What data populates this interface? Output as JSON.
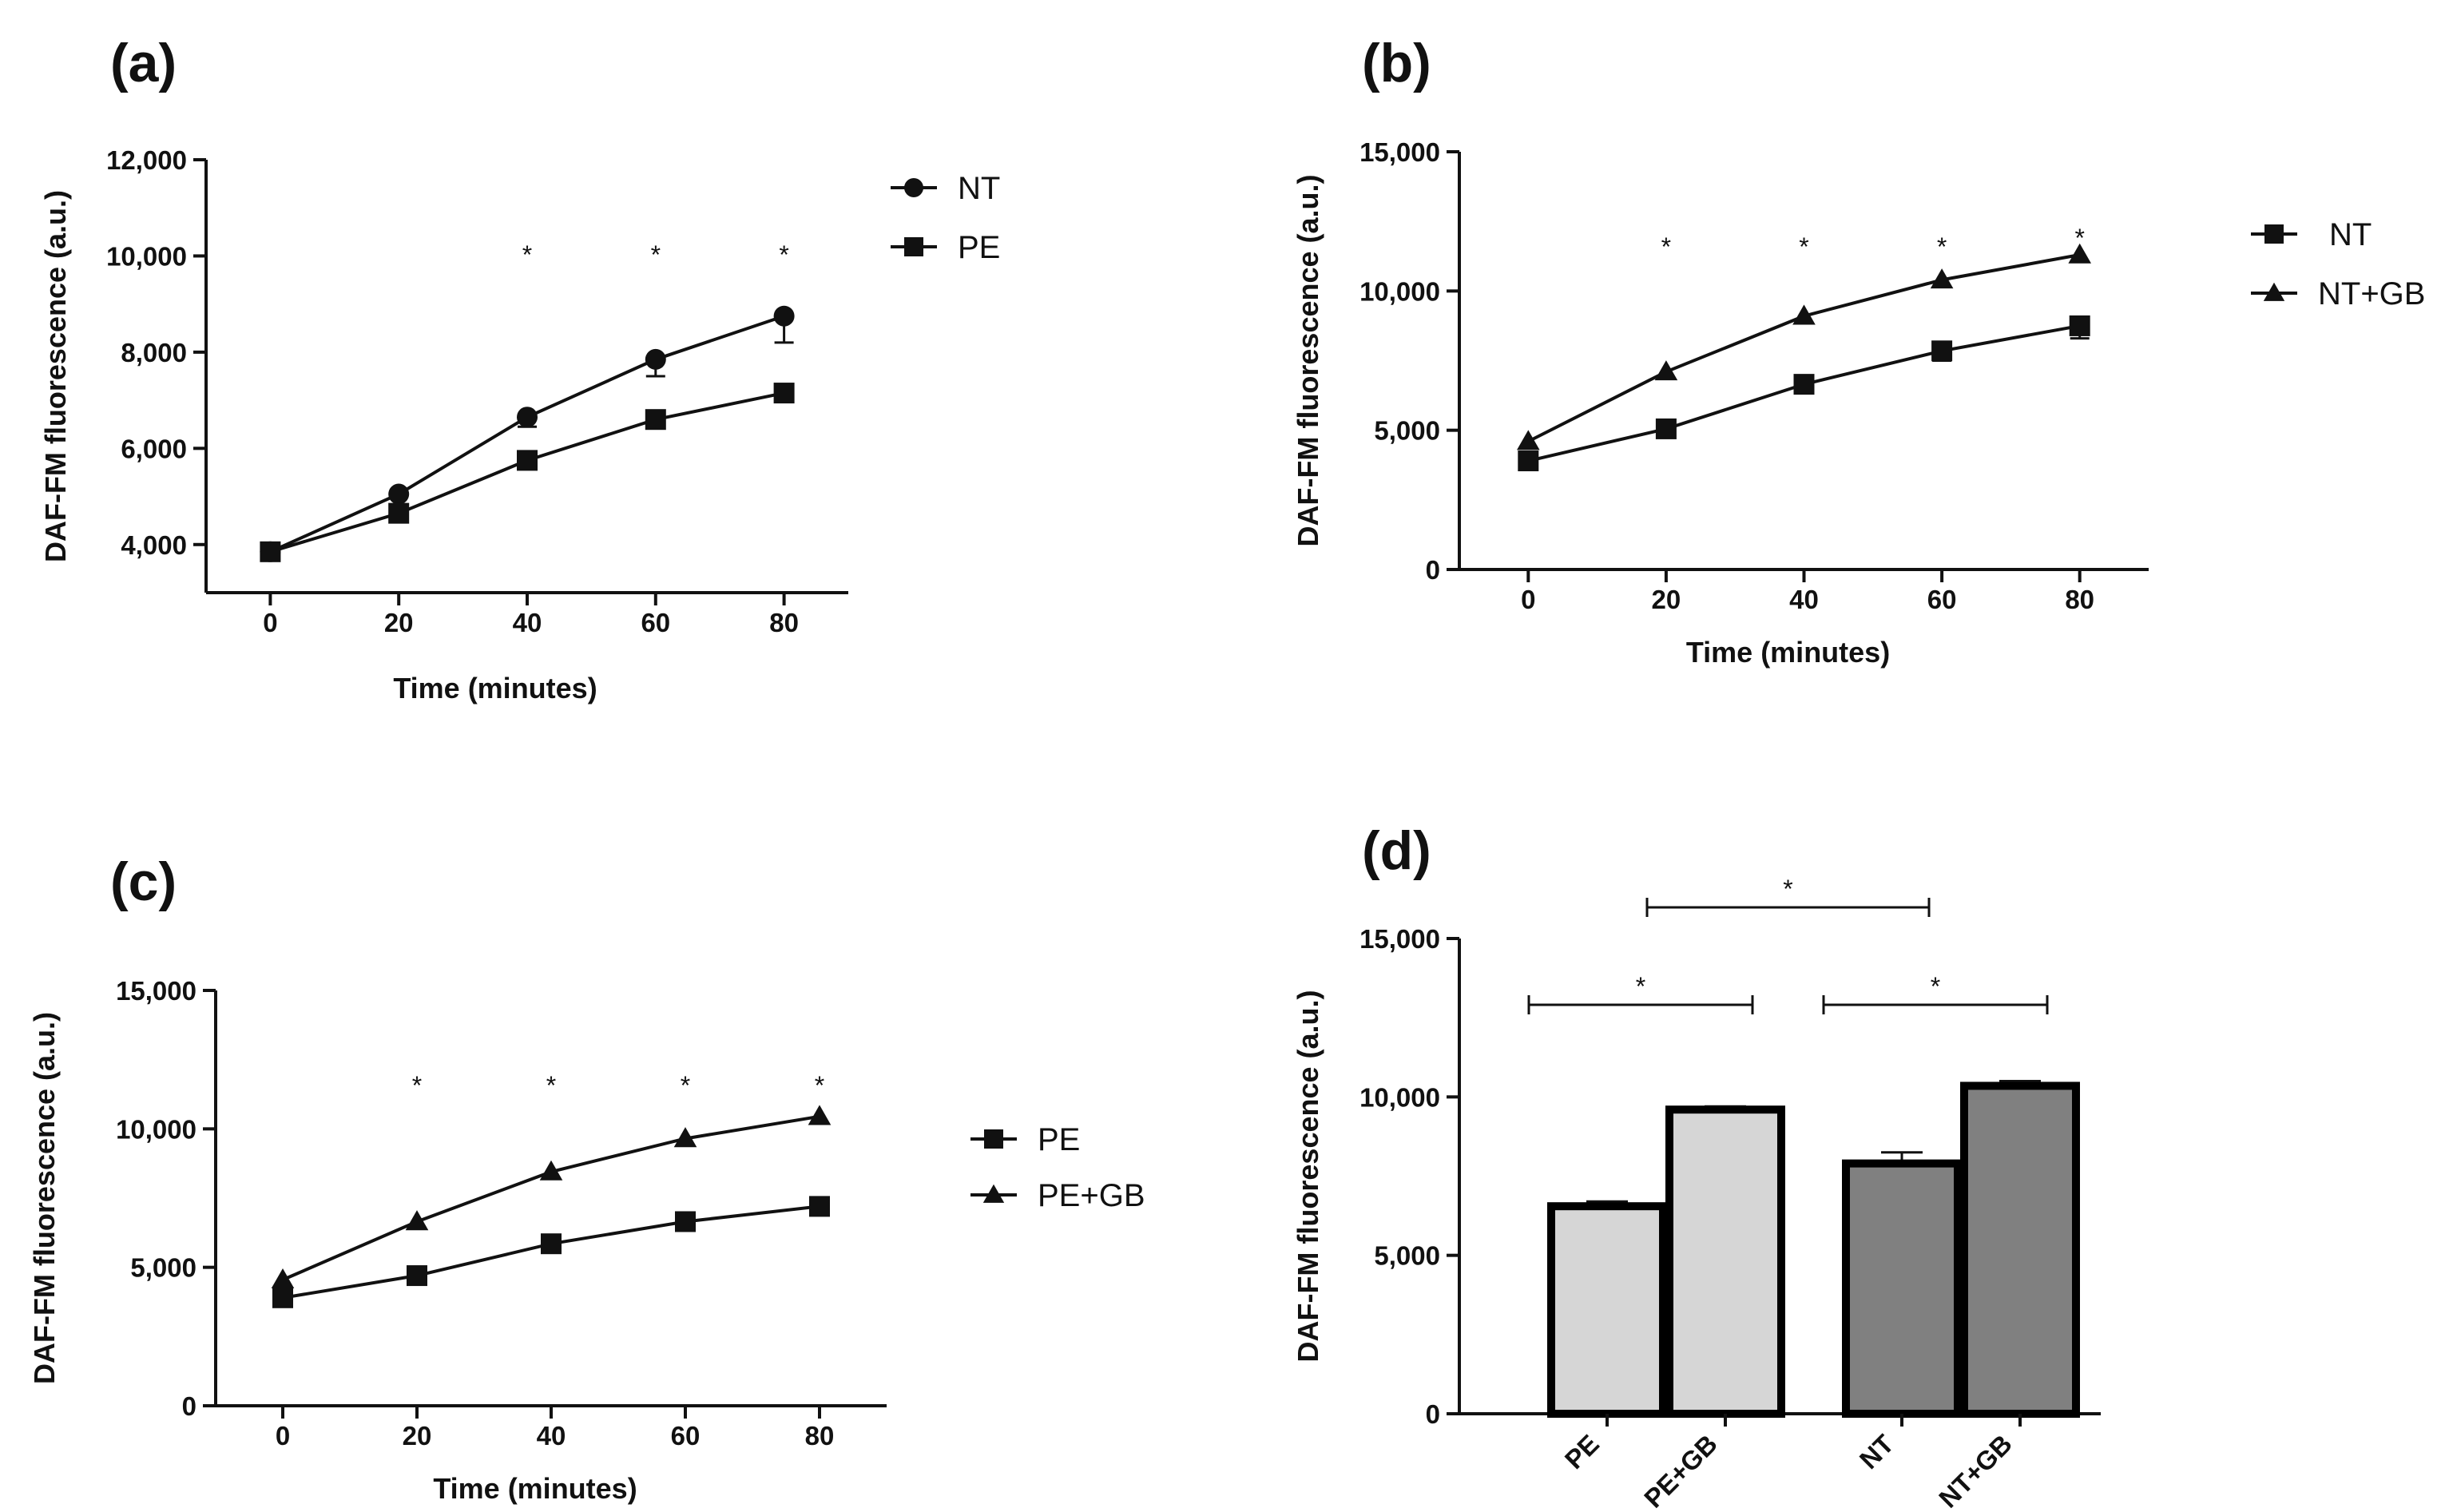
{
  "chart_data": [
    {
      "id": "a",
      "panel_label": "(a)",
      "type": "line",
      "xlabel": "Time (minutes)",
      "ylabel": "DAF-FM fluorescence (a.u.)",
      "x": [
        0,
        20,
        40,
        60,
        80
      ],
      "x_ticks": [
        "0",
        "20",
        "40",
        "60",
        "80"
      ],
      "xlim": [
        -10,
        90
      ],
      "ylim": [
        3000,
        12000
      ],
      "y_ticks": [
        4000,
        6000,
        8000,
        10000,
        12000
      ],
      "y_tick_labels": [
        "4,000",
        "6,000",
        "8,000",
        "10,000",
        "12,000"
      ],
      "series": [
        {
          "name": "NT",
          "marker": "circle",
          "values": [
            3850,
            5050,
            6650,
            7850,
            8750
          ],
          "errors": [
            0,
            0,
            200,
            350,
            550
          ]
        },
        {
          "name": "PE",
          "marker": "square",
          "values": [
            3850,
            4650,
            5750,
            6600,
            7150
          ],
          "errors": [
            0,
            0,
            0,
            0,
            0
          ]
        }
      ],
      "annotations": [
        {
          "x": 40,
          "text": "*"
        },
        {
          "x": 60,
          "text": "*"
        },
        {
          "x": 80,
          "text": "*"
        }
      ],
      "legend_position": "top-right"
    },
    {
      "id": "b",
      "panel_label": "(b)",
      "type": "line",
      "xlabel": "Time (minutes)",
      "ylabel": "DAF-FM fluorescence (a.u.)",
      "x": [
        0,
        20,
        40,
        60,
        80
      ],
      "x_ticks": [
        "0",
        "20",
        "40",
        "60",
        "80"
      ],
      "xlim": [
        -10,
        90
      ],
      "ylim": [
        0,
        15000
      ],
      "y_ticks": [
        0,
        5000,
        10000,
        15000
      ],
      "y_tick_labels": [
        "0",
        "5,000",
        "10,000",
        "15,000"
      ],
      "series": [
        {
          "name": "NT",
          "marker": "square",
          "values": [
            3900,
            5050,
            6650,
            7850,
            8750
          ],
          "errors": [
            0,
            0,
            0,
            350,
            450
          ]
        },
        {
          "name": "NT+GB",
          "marker": "triangle",
          "values": [
            4600,
            7100,
            9100,
            10400,
            11300
          ],
          "errors": [
            0,
            0,
            0,
            0,
            0
          ]
        }
      ],
      "annotations": [
        {
          "x": 20,
          "text": "*"
        },
        {
          "x": 40,
          "text": "*"
        },
        {
          "x": 60,
          "text": "*"
        },
        {
          "x": 80,
          "text": "*"
        }
      ],
      "legend_position": "right"
    },
    {
      "id": "c",
      "panel_label": "(c)",
      "type": "line",
      "xlabel": "Time (minutes)",
      "ylabel": "DAF-FM fluorescence (a.u.)",
      "x": [
        0,
        20,
        40,
        60,
        80
      ],
      "x_ticks": [
        "0",
        "20",
        "40",
        "60",
        "80"
      ],
      "xlim": [
        -10,
        90
      ],
      "ylim": [
        0,
        15000
      ],
      "y_ticks": [
        0,
        5000,
        10000,
        15000
      ],
      "y_tick_labels": [
        "0",
        "5,000",
        "10,000",
        "15,000"
      ],
      "series": [
        {
          "name": "PE",
          "marker": "square",
          "values": [
            3900,
            4700,
            5850,
            6650,
            7200
          ],
          "errors": [
            0,
            0,
            0,
            0,
            0
          ]
        },
        {
          "name": "PE+GB",
          "marker": "triangle",
          "values": [
            4550,
            6650,
            8450,
            9650,
            10450
          ],
          "errors": [
            0,
            0,
            0,
            0,
            0
          ]
        }
      ],
      "annotations": [
        {
          "x": 20,
          "text": "*"
        },
        {
          "x": 40,
          "text": "*"
        },
        {
          "x": 60,
          "text": "*"
        },
        {
          "x": 80,
          "text": "*"
        }
      ],
      "legend_position": "right"
    },
    {
      "id": "d",
      "panel_label": "(d)",
      "type": "bar",
      "ylabel": "DAF-FM fluorescence (a.u.)",
      "categories": [
        "PE",
        "PE+GB",
        "NT",
        "NT+GB"
      ],
      "values": [
        6550,
        9600,
        7900,
        10350
      ],
      "errors": [
        150,
        100,
        350,
        150
      ],
      "bar_colors": [
        "#d6d6d6",
        "#d6d6d6",
        "#808080",
        "#808080"
      ],
      "ylim": [
        0,
        15000
      ],
      "y_ticks": [
        0,
        5000,
        10000,
        15000
      ],
      "y_tick_labels": [
        "0",
        "5,000",
        "10,000",
        "15,000"
      ],
      "comparisons": [
        {
          "from": 0,
          "to": 1,
          "text": "*"
        },
        {
          "from": 2,
          "to": 3,
          "text": "*"
        },
        {
          "from": 1,
          "to": 2,
          "text": "*"
        }
      ]
    }
  ]
}
